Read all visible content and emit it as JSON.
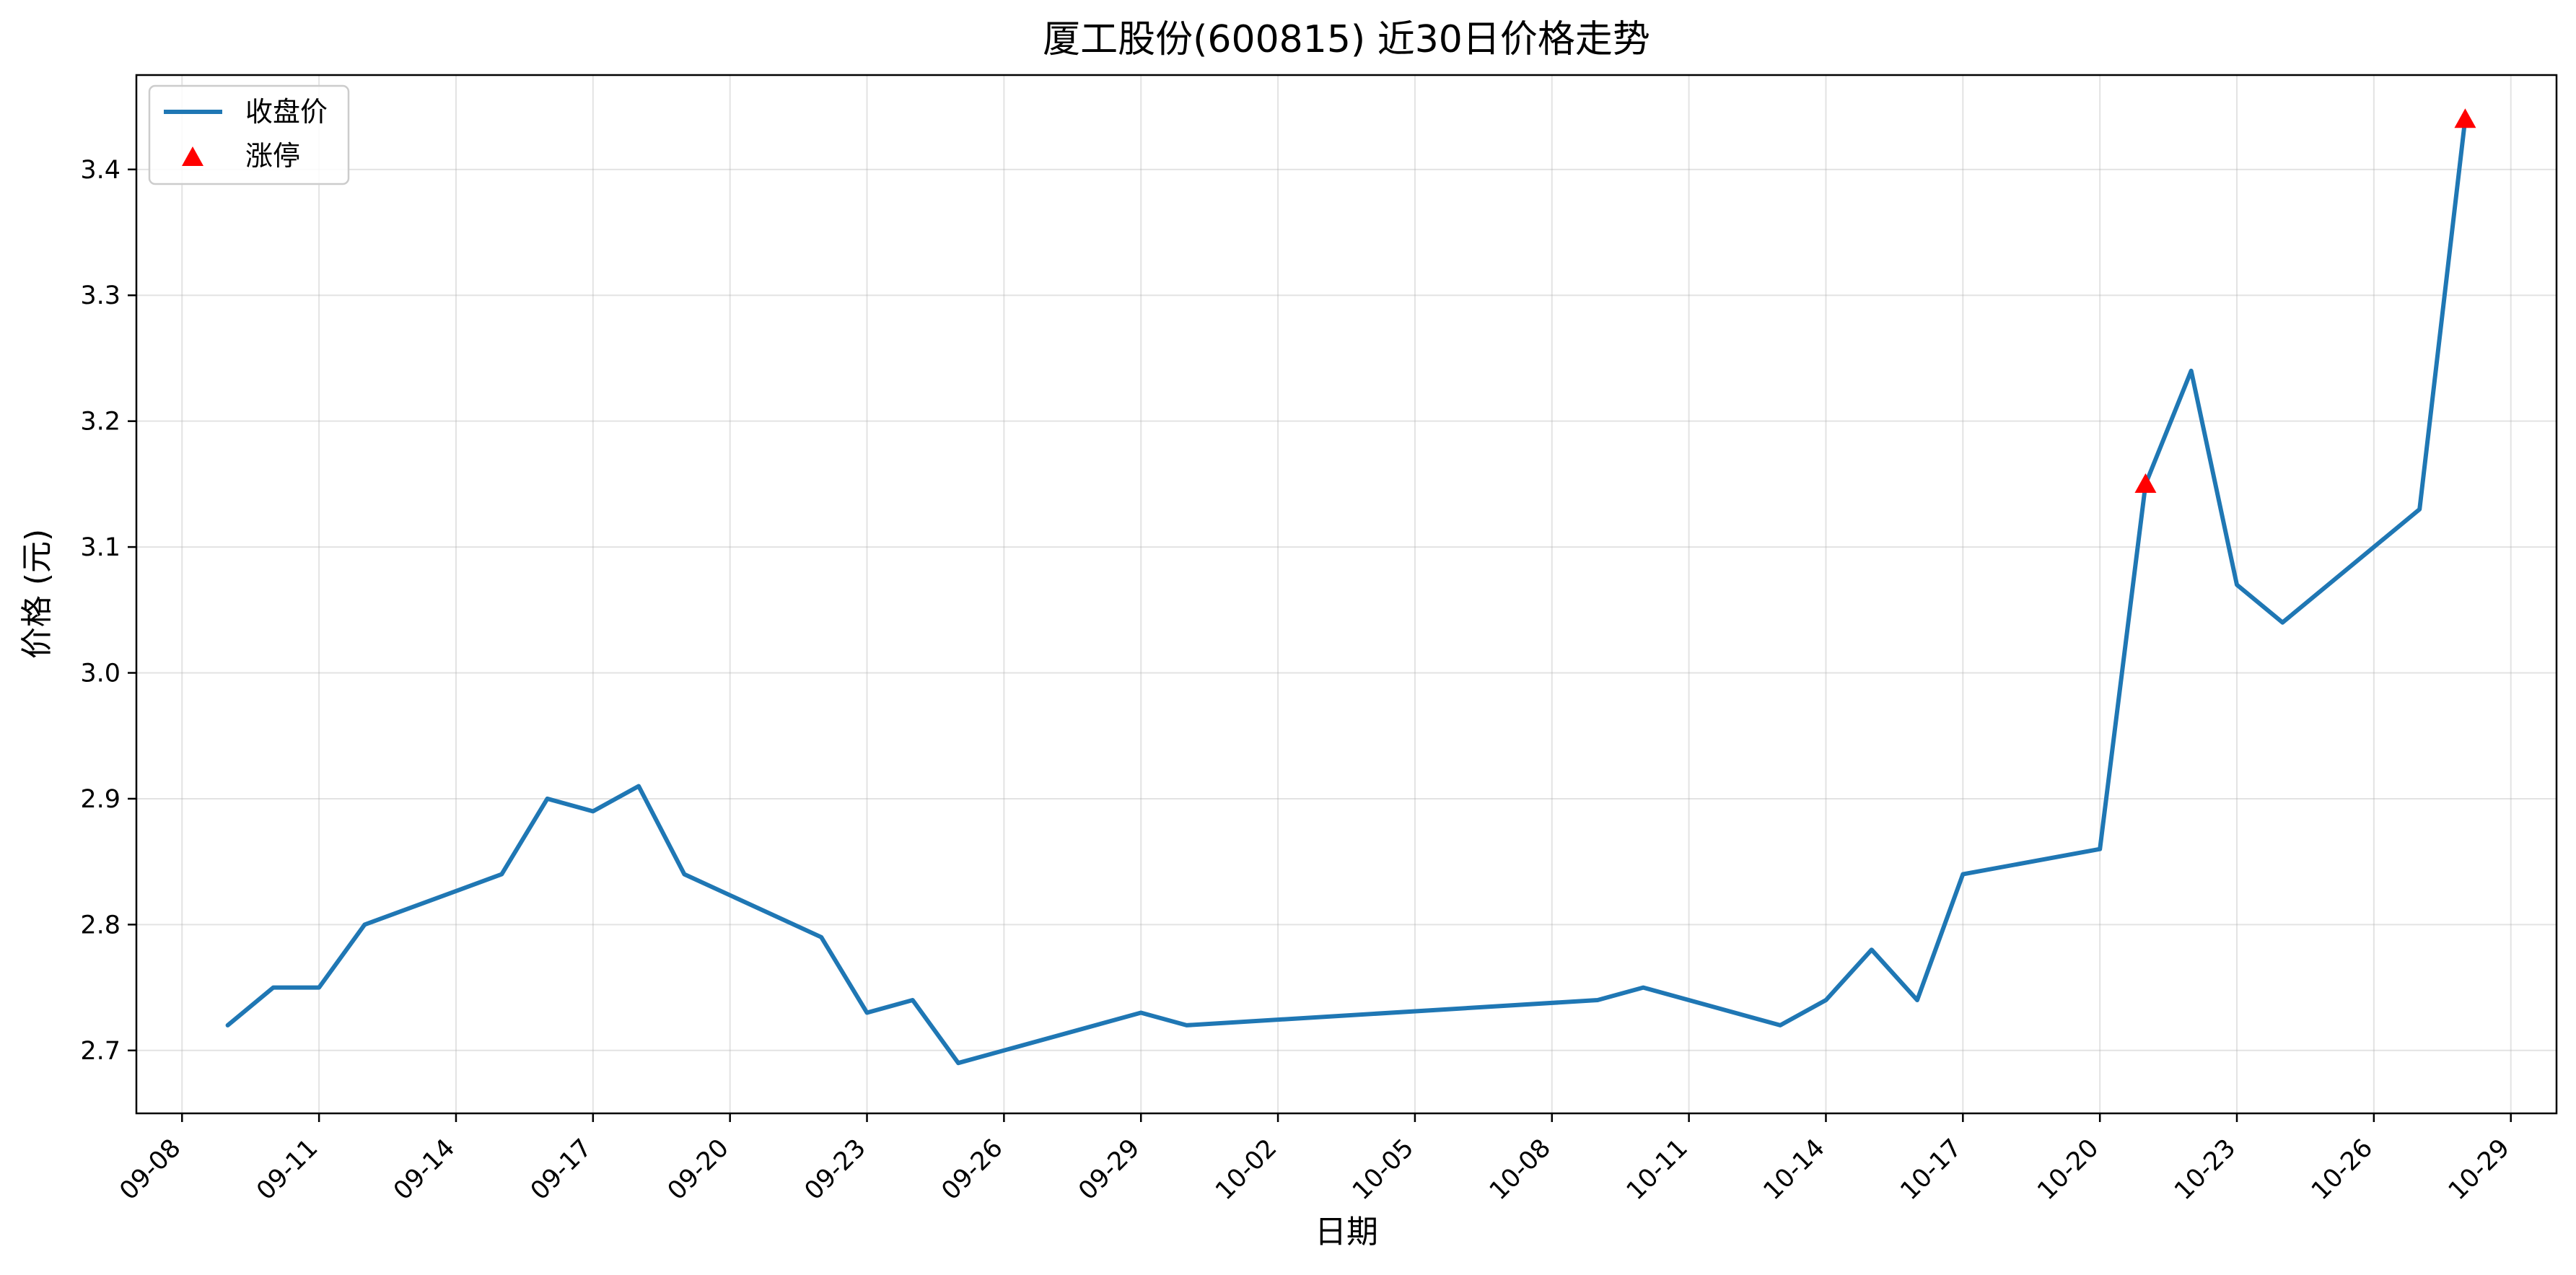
{
  "chart_data": {
    "type": "line",
    "title": "厦工股份(600815) 近30日价格走势",
    "xlabel": "日期",
    "ylabel": "价格 (元)",
    "ylim": [
      2.65,
      3.475
    ],
    "xlim": [
      "2025-09-07",
      "2025-10-30"
    ],
    "grid": true,
    "legend_position": "upper left",
    "x_ticks": [
      "09-08",
      "09-11",
      "09-14",
      "09-17",
      "09-20",
      "09-23",
      "09-26",
      "09-29",
      "10-02",
      "10-05",
      "10-08",
      "10-11",
      "10-14",
      "10-17",
      "10-20",
      "10-23",
      "10-26",
      "10-29"
    ],
    "y_ticks": [
      "2.7",
      "2.8",
      "2.9",
      "3.0",
      "3.1",
      "3.2",
      "3.3",
      "3.4"
    ],
    "series": [
      {
        "name": "收盘价",
        "type": "line",
        "color": "#1f77b4",
        "points": [
          {
            "date": "2025-09-09",
            "value": 2.72
          },
          {
            "date": "2025-09-10",
            "value": 2.75
          },
          {
            "date": "2025-09-11",
            "value": 2.75
          },
          {
            "date": "2025-09-12",
            "value": 2.8
          },
          {
            "date": "2025-09-15",
            "value": 2.84
          },
          {
            "date": "2025-09-16",
            "value": 2.9
          },
          {
            "date": "2025-09-17",
            "value": 2.89
          },
          {
            "date": "2025-09-18",
            "value": 2.91
          },
          {
            "date": "2025-09-19",
            "value": 2.84
          },
          {
            "date": "2025-09-22",
            "value": 2.79
          },
          {
            "date": "2025-09-23",
            "value": 2.73
          },
          {
            "date": "2025-09-24",
            "value": 2.74
          },
          {
            "date": "2025-09-25",
            "value": 2.69
          },
          {
            "date": "2025-09-29",
            "value": 2.73
          },
          {
            "date": "2025-09-30",
            "value": 2.72
          },
          {
            "date": "2025-10-09",
            "value": 2.74
          },
          {
            "date": "2025-10-10",
            "value": 2.75
          },
          {
            "date": "2025-10-13",
            "value": 2.72
          },
          {
            "date": "2025-10-14",
            "value": 2.74
          },
          {
            "date": "2025-10-15",
            "value": 2.78
          },
          {
            "date": "2025-10-16",
            "value": 2.74
          },
          {
            "date": "2025-10-17",
            "value": 2.84
          },
          {
            "date": "2025-10-20",
            "value": 2.86
          },
          {
            "date": "2025-10-21",
            "value": 3.15
          },
          {
            "date": "2025-10-22",
            "value": 3.24
          },
          {
            "date": "2025-10-23",
            "value": 3.07
          },
          {
            "date": "2025-10-24",
            "value": 3.04
          },
          {
            "date": "2025-10-27",
            "value": 3.13
          },
          {
            "date": "2025-10-28",
            "value": 3.44
          }
        ]
      },
      {
        "name": "涨停",
        "type": "scatter",
        "marker": "triangle",
        "color": "#ff0000",
        "points": [
          {
            "date": "2025-10-21",
            "value": 3.15
          },
          {
            "date": "2025-10-28",
            "value": 3.44
          }
        ]
      }
    ]
  }
}
